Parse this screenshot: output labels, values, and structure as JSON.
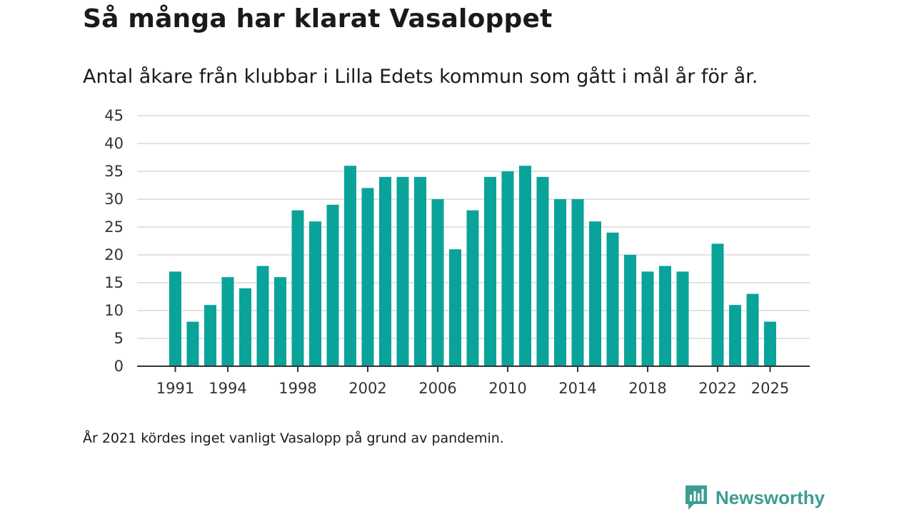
{
  "header": {
    "title": "Så många har klarat Vasaloppet",
    "subtitle": "Antal åkare från klubbar i Lilla Edets kommun som gått i mål år för år."
  },
  "footnote": "År 2021 kördes inget vanligt Vasalopp på grund av pandemin.",
  "brand": {
    "name": "Newsworthy",
    "icon": "newsworthy-logo-icon"
  },
  "colors": {
    "bar": "#0aa39a",
    "grid": "#d9d9d9",
    "axis": "#333333",
    "brand": "#3b9e93"
  },
  "chart_data": {
    "type": "bar",
    "title": "Så många har klarat Vasaloppet",
    "xlabel": "",
    "ylabel": "",
    "ylim": [
      0,
      45
    ],
    "yticks": [
      0,
      5,
      10,
      15,
      20,
      25,
      30,
      35,
      40,
      45
    ],
    "xtick_labels": [
      "1991",
      "1994",
      "1998",
      "2002",
      "2006",
      "2010",
      "2014",
      "2018",
      "2022",
      "2025"
    ],
    "grid": true,
    "categories": [
      "1991",
      "1992",
      "1993",
      "1994",
      "1995",
      "1996",
      "1997",
      "1998",
      "1999",
      "2000",
      "2001",
      "2002",
      "2003",
      "2004",
      "2005",
      "2006",
      "2007",
      "2008",
      "2009",
      "2010",
      "2011",
      "2012",
      "2013",
      "2014",
      "2015",
      "2016",
      "2017",
      "2018",
      "2019",
      "2020",
      "2021",
      "2022",
      "2023",
      "2024",
      "2025"
    ],
    "values": [
      17,
      8,
      11,
      16,
      14,
      18,
      16,
      28,
      26,
      29,
      36,
      32,
      34,
      34,
      34,
      30,
      21,
      28,
      34,
      35,
      36,
      34,
      30,
      30,
      26,
      24,
      20,
      17,
      18,
      17,
      null,
      22,
      11,
      13,
      8
    ]
  }
}
